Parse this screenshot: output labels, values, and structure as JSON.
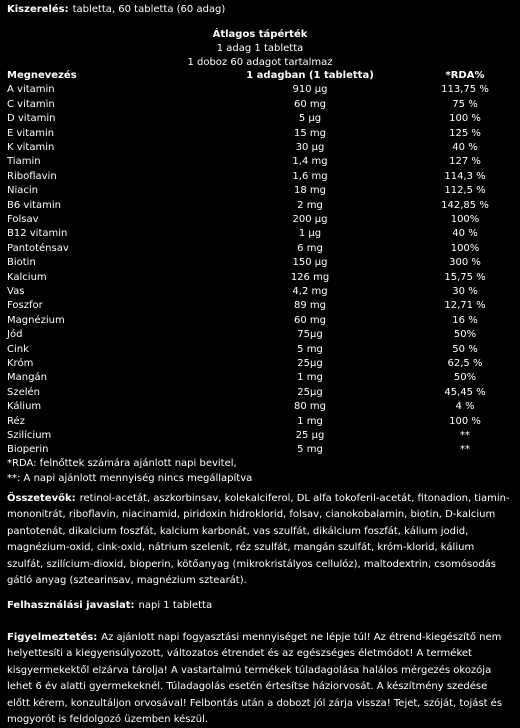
{
  "packaging": {
    "label": "Kiszerelés:",
    "text": "tabletta, 60 tabletta (60 adag)"
  },
  "table": {
    "title": [
      "Átlagos tápérték",
      "1 adag 1 tabletta",
      "1 doboz 60 adagot tartalmaz"
    ],
    "header": [
      "Megnevezés",
      "1 adagban (1 tabletta)",
      "*RDA%"
    ],
    "rows": [
      [
        "A vitamin",
        "910 µg",
        "113,75 %"
      ],
      [
        "C vitamin",
        "60 mg",
        "75 %"
      ],
      [
        "D vitamin",
        "5 µg",
        "100 %"
      ],
      [
        "E vitamin",
        "15 mg",
        "125 %"
      ],
      [
        "K vitamin",
        "30 µg",
        "40 %"
      ],
      [
        "Tiamin",
        "1,4 mg",
        "127 %"
      ],
      [
        "Riboflavin",
        "1,6 mg",
        "114,3 %"
      ],
      [
        "Niacin",
        "18 mg",
        "112,5 %"
      ],
      [
        "B6 vitamin",
        "2 mg",
        "142,85 %"
      ],
      [
        "Folsav",
        "200 µg",
        "100%"
      ],
      [
        "B12 vitamin",
        "1 µg",
        "40 %"
      ],
      [
        "Pantoténsav",
        "6 mg",
        "100%"
      ],
      [
        "Biotin",
        "150 µg",
        "300 %"
      ],
      [
        "Kalcium",
        "126 mg",
        "15,75 %"
      ],
      [
        "Vas",
        "4,2 mg",
        "30 %"
      ],
      [
        "Foszfor",
        "89 mg",
        "12,71 %"
      ],
      [
        "Magnézium",
        "60 mg",
        "16 %"
      ],
      [
        "Jód",
        "75µg",
        "50%"
      ],
      [
        "Cink",
        "5 mg",
        "50 %"
      ],
      [
        "Króm",
        "25µg",
        "62,5 %"
      ],
      [
        "Mangán",
        "1 mg",
        "50%"
      ],
      [
        "Szelén",
        "25µg",
        "45,45 %"
      ],
      [
        "Kálium",
        "80 mg",
        "4 %"
      ],
      [
        "Réz",
        "1 mg",
        "100 %"
      ],
      [
        "Szilícium",
        "25 µg",
        "**"
      ],
      [
        "Bioperin",
        "5 mg",
        "**"
      ]
    ],
    "footnotes": [
      "*RDA: felnőttek számára ajánlott napi bevitel,",
      "**: A napi ajánlott mennyiség nincs megállapítva"
    ]
  },
  "ingredients": {
    "label": "Összetevők:",
    "text": "retinol-acetát, aszkorbinsav, kolekalciferol, DL alfa tokoferil-acetát, fitonadion, tiamin-mononitrát, riboflavin, niacinamid, piridoxin hidroklorid, folsav, cianokobalamin, biotin, D-kalcium pantotenát, dikalcium foszfát, kalcium karbonát, vas szulfát, dikálcium foszfát, kálium jodid, magnézium-oxid, cink-oxid, nátrium szelenit, réz szulfát, mangán szulfát, króm-klorid, kálium szulfát, szilícium-dioxid, bioperin, kötőanyag (mikrokristályos cellulóz), maltodextrin, csomósodás gátló anyag (sztearinsav, magnézium sztearát)."
  },
  "usage": {
    "label": "Felhasználási javaslat:",
    "text": "napi 1 tabletta"
  },
  "warning": {
    "label": "Figyelmeztetés:",
    "text": "Az ajánlott napi fogyasztási mennyiséget ne lépje túl! Az étrend-kiegészítő nem helyettesíti a kiegyensúlyozott, változatos étrendet és az egészséges életmódot! A terméket kisgyermekektől elzárva tárolja! A vastartalmú termékek túladagolása halálos mérgezés okozója lehet 6 év alatti gyermekeknél. Túladagolás esetén értesítse háziorvosát. A készítmény szedése előtt kérem, konzultáljon orvosával! Felbontás után a dobozt jól zárja vissza! Tejet, szóját, tojást és mogyorót is feldolgozó üzemben készül."
  }
}
